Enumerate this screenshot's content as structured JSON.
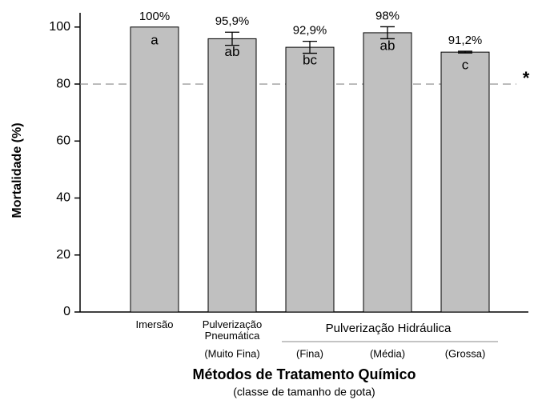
{
  "chart_data": {
    "type": "bar",
    "y_label": "Mortalidade (%)",
    "x_label": "Métodos de Tratamento Químico",
    "x_sublabel": "(classe de tamanho de gota)",
    "categories": [
      [
        "Imersão"
      ],
      [
        "Pulverização",
        "Pneumática"
      ],
      null,
      null,
      null
    ],
    "droplet_classes": [
      null,
      "(Muito Fina)",
      "(Fina)",
      "(Média)",
      "(Grossa)"
    ],
    "group_label": "Pulverização Hidráulica",
    "values": [
      100,
      95.9,
      92.9,
      98,
      91.2
    ],
    "value_labels": [
      "100%",
      "95,9%",
      "92,9%",
      "98%",
      "91,2%"
    ],
    "errors": [
      null,
      2.3,
      2.1,
      2.1,
      0.3
    ],
    "letters": [
      "a",
      "ab",
      "bc",
      "ab",
      "c"
    ],
    "color": "#c0c0c0",
    "reference_line": {
      "value": 80,
      "label": "*"
    },
    "ylim": [
      0,
      105
    ],
    "yticks": [
      0,
      20,
      40,
      60,
      80,
      100
    ],
    "grid": false
  }
}
